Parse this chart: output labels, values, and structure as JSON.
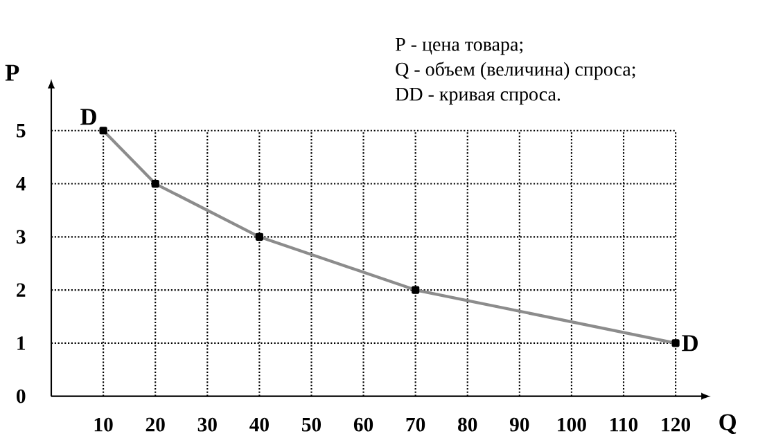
{
  "chart_data": {
    "type": "line",
    "xlabel": "Q",
    "ylabel": "P",
    "x": [
      10,
      20,
      40,
      70,
      120
    ],
    "series": [
      {
        "color": "#8c8c8c",
        "values": [
          5,
          4,
          3,
          2,
          1
        ]
      }
    ],
    "xlim": [
      0,
      125
    ],
    "ylim": [
      0,
      5.8
    ],
    "xticks": [
      10,
      20,
      30,
      40,
      50,
      60,
      70,
      80,
      90,
      100,
      110,
      120
    ],
    "yticks": [
      {
        "value": 0,
        "label": "0"
      },
      1,
      2,
      3,
      4,
      5
    ],
    "grid": true,
    "marker": "square",
    "line_style": "solid",
    "annotations": [
      {
        "text": "D",
        "x": 10,
        "y": 5
      },
      {
        "text": "D",
        "x": 120,
        "y": 1
      },
      "P - цена товара;",
      "Q - объем (величина) спроса;",
      "DD - кривая спроса."
    ]
  }
}
